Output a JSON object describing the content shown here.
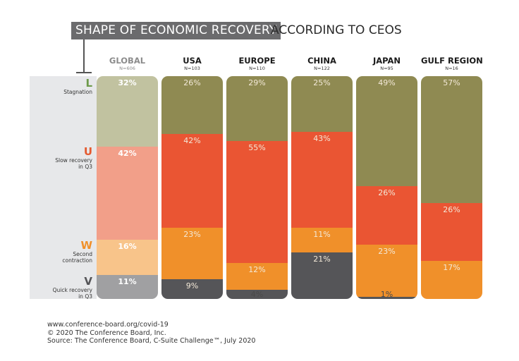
{
  "header": {
    "title_highlight": "SHAPE OF ECONOMIC RECOVERY",
    "title_rest": "ACCORDING TO CEOS"
  },
  "shapes": [
    {
      "letter": "L",
      "desc_lines": [
        "Stagnation"
      ],
      "color": "#6d9a4a"
    },
    {
      "letter": "U",
      "desc_lines": [
        "Slow recovery",
        "in Q3"
      ],
      "color": "#e45a30"
    },
    {
      "letter": "W",
      "desc_lines": [
        "Second",
        "contraction"
      ],
      "color": "#f0902a"
    },
    {
      "letter": "V",
      "desc_lines": [
        "Quick recovery",
        "in Q3"
      ],
      "color": "#555558"
    }
  ],
  "chart_data": {
    "type": "bar",
    "stacked": true,
    "normalized": true,
    "title": "SHAPE OF ECONOMIC RECOVERY ACCORDING TO CEOS",
    "categories": [
      "GLOBAL",
      "USA",
      "EUROPE",
      "CHINA",
      "JAPAN",
      "GULF REGION"
    ],
    "sample_sizes": [
      "N=606",
      "N=103",
      "N=110",
      "N=122",
      "N=95",
      "N=16"
    ],
    "series": [
      {
        "name": "L - Stagnation",
        "values": [
          32,
          26,
          29,
          25,
          49,
          57
        ]
      },
      {
        "name": "U - Slow recovery in Q3",
        "values": [
          42,
          42,
          55,
          43,
          26,
          26
        ]
      },
      {
        "name": "W - Second contraction",
        "values": [
          16,
          23,
          12,
          11,
          23,
          17
        ]
      },
      {
        "name": "V - Quick recovery in Q3",
        "values": [
          11,
          9,
          4,
          21,
          1,
          0
        ]
      }
    ],
    "unit": "%",
    "colors": {
      "global": [
        "#c1c2a0",
        "#f29f89",
        "#f8c48a",
        "#a0a0a2"
      ],
      "regions": [
        "#8f8a52",
        "#ea5533",
        "#f0902a",
        "#555558"
      ]
    },
    "xlabel": "",
    "ylabel": ""
  },
  "footer": {
    "line1": "www.conference-board.org/covid-19",
    "line2": "© 2020 The Conference Board, Inc.",
    "line3": "Source: The Conference Board, C-Suite Challenge™, July 2020"
  }
}
